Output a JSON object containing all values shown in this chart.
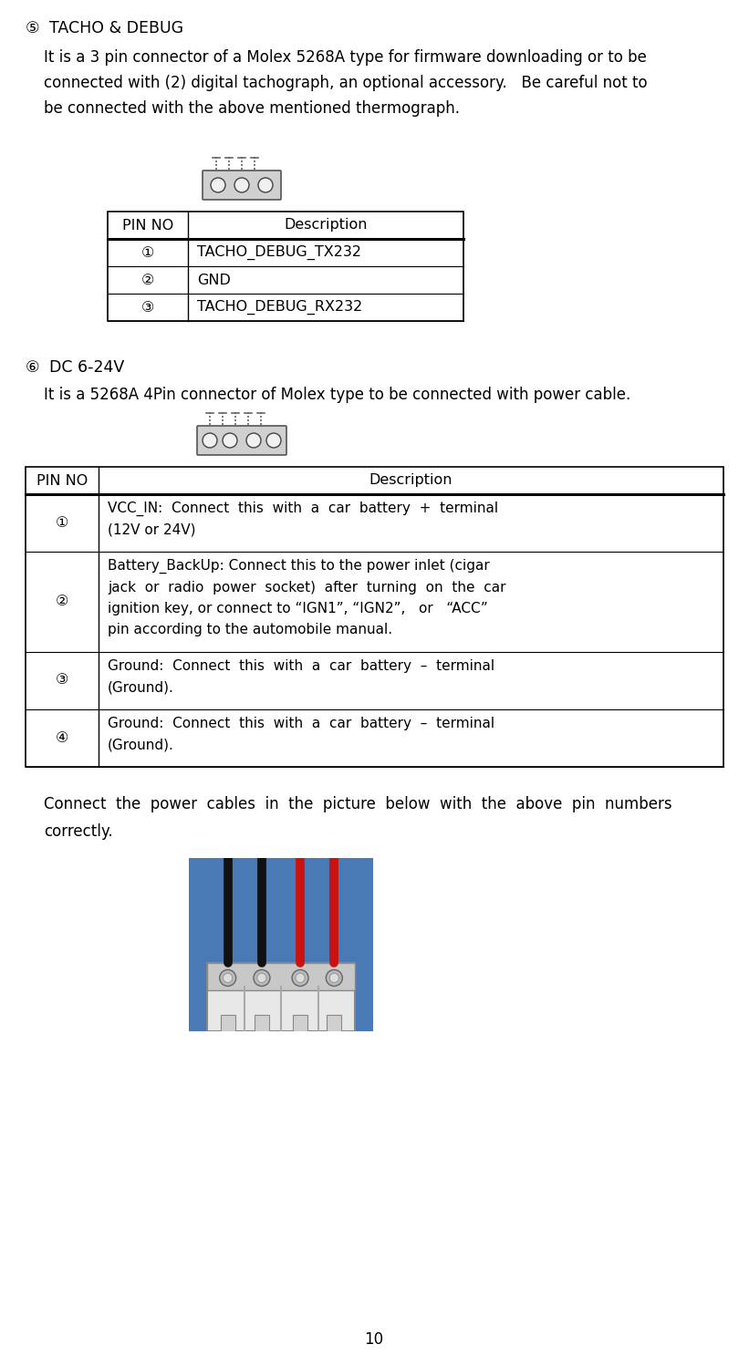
{
  "page_number": "10",
  "bg_color": "#ffffff",
  "text_color": "#000000",
  "section5_marker": "⑤",
  "section5_title": "TACHO & DEBUG",
  "section5_desc_lines": [
    "It is a 3 pin connector of a Molex 5268A type for firmware downloading or to be",
    "connected with (2) digital tachograph, an optional accessory.   Be careful not to",
    "be connected with the above mentioned thermograph."
  ],
  "table1_headers": [
    "PIN NO",
    "Description"
  ],
  "table1_rows": [
    [
      "①",
      "TACHO_DEBUG_TX232"
    ],
    [
      "②",
      "GND"
    ],
    [
      "③",
      "TACHO_DEBUG_RX232"
    ]
  ],
  "section6_marker": "⑥",
  "section6_title": "DC 6-24V",
  "section6_desc": "It is a 5268A 4Pin connector of Molex type to be connected with power cable.",
  "table2_headers": [
    "PIN NO",
    "Description"
  ],
  "table2_rows": [
    [
      "①",
      "VCC_IN:  Connect  this  with  a  car  battery  +  terminal",
      "(12V or 24V)"
    ],
    [
      "②",
      "Battery_BackUp: Connect this to the power inlet (cigar",
      "jack  or  radio  power  socket)  after  turning  on  the  car",
      "ignition key, or connect to “IGN1”, “IGN2”,   or   “ACC”",
      "pin according to the automobile manual."
    ],
    [
      "③",
      "Ground:  Connect  this  with  a  car  battery  –  terminal",
      "(Ground)."
    ],
    [
      "④",
      "Ground:  Connect  this  with  a  car  battery  –  terminal",
      "(Ground)."
    ]
  ],
  "footer_lines": [
    "Connect  the  power  cables  in  the  picture  below  with  the  above  pin  numbers",
    "correctly."
  ],
  "body_fs": 12.0,
  "title_fs": 12.5,
  "table_fs": 11.5
}
